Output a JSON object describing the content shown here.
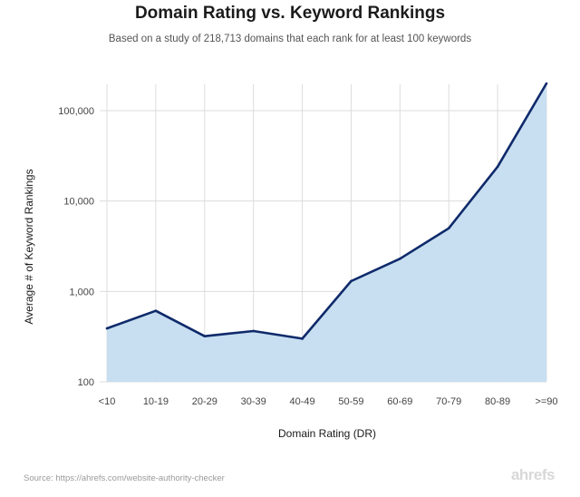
{
  "chart_data": {
    "type": "area",
    "title": "Domain Rating vs. Keyword Rankings",
    "subtitle": "Based on a study of 218,713 domains that each rank for at least 100 keywords",
    "xlabel": "Domain Rating (DR)",
    "ylabel": "Average # of Keyword Rankings",
    "categories": [
      "<10",
      "10-19",
      "20-29",
      "30-39",
      "40-49",
      "50-59",
      "60-69",
      "70-79",
      "80-89",
      ">=90"
    ],
    "values": [
      390,
      610,
      320,
      365,
      300,
      1300,
      2300,
      5000,
      24000,
      200000
    ],
    "y_scale": "log",
    "ylim": [
      100,
      200000
    ],
    "y_ticks": [
      100,
      1000,
      10000,
      100000
    ],
    "y_tick_labels": [
      "100",
      "1,000",
      "10,000",
      "100,000"
    ],
    "grid": true,
    "line_color": "#0f2a6b",
    "fill_color": "#c5ddf0"
  },
  "footer": {
    "source": "Source: https://ahrefs.com/website-authority-checker",
    "brand": "ahrefs"
  }
}
